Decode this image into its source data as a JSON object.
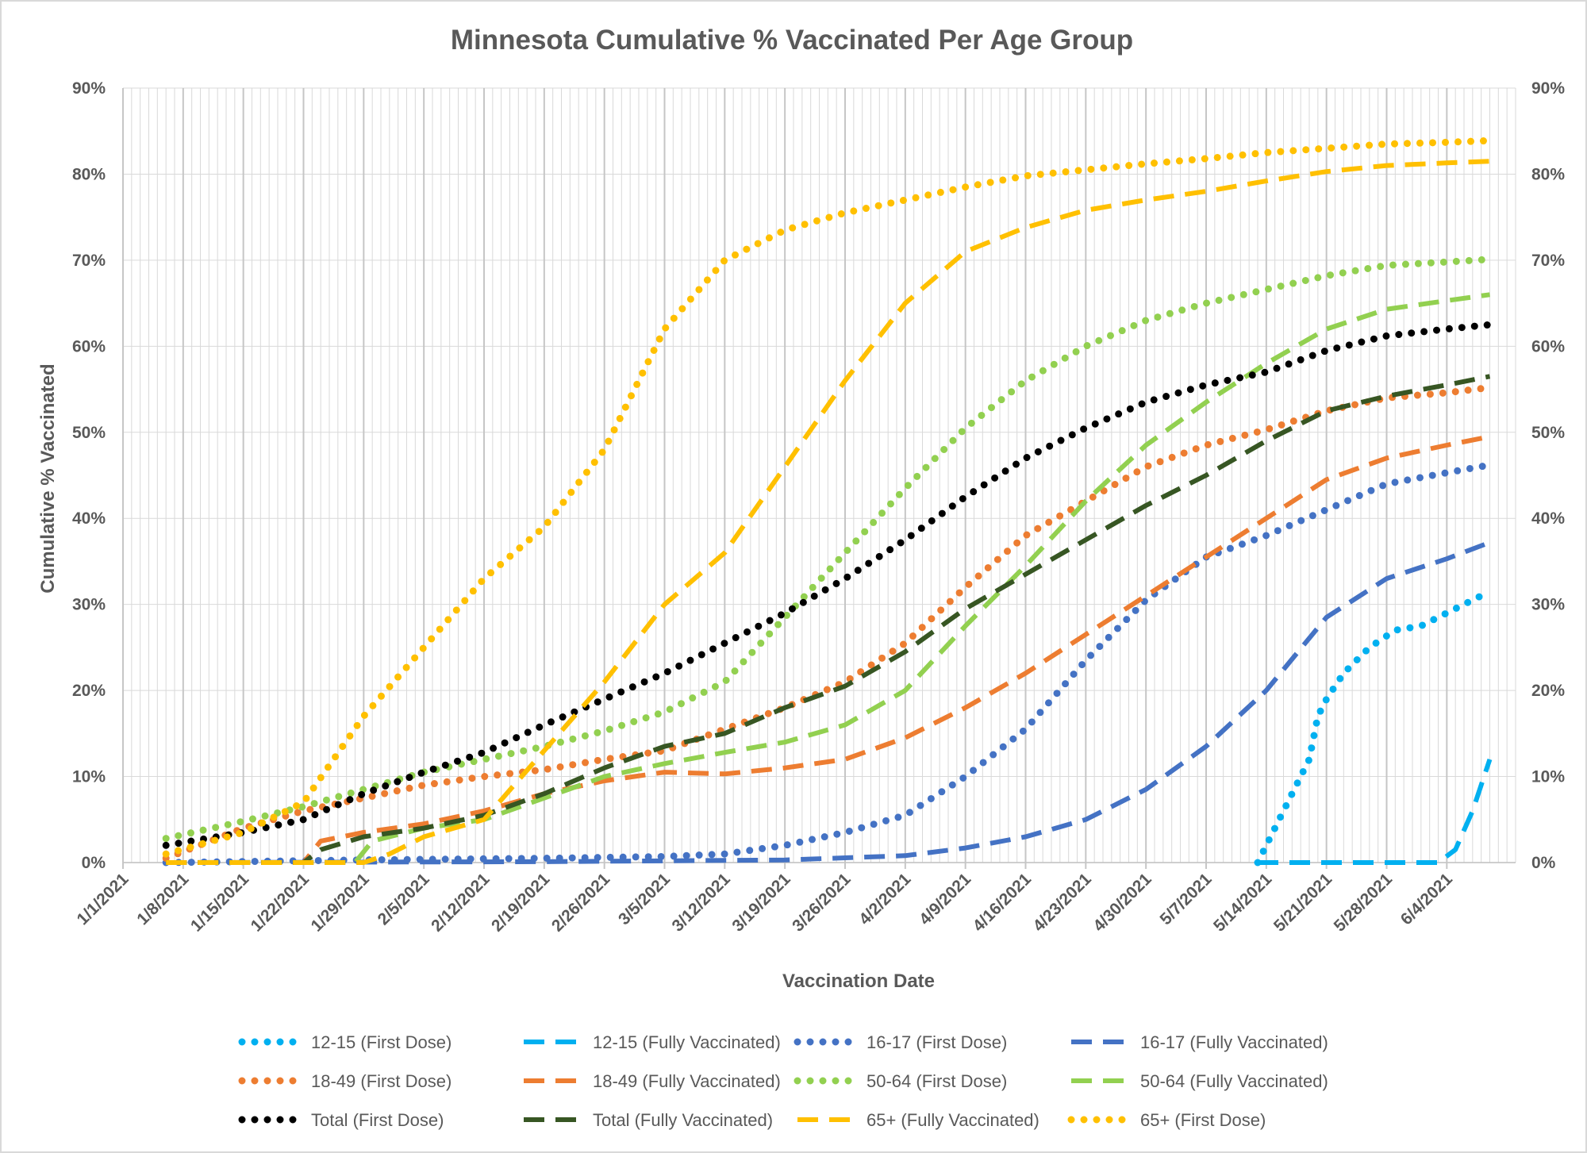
{
  "chart_data": {
    "type": "line",
    "title": "Minnesota Cumulative % Vaccinated Per Age Group",
    "xlabel": "Vaccination Date",
    "ylabel": "Cumulative % Vaccinated",
    "ylim": [
      0,
      90
    ],
    "yticks": [
      "0%",
      "10%",
      "20%",
      "30%",
      "40%",
      "50%",
      "60%",
      "70%",
      "80%",
      "90%"
    ],
    "y_right_ticks": [
      "0%",
      "10%",
      "20%",
      "30%",
      "40%",
      "50%",
      "60%",
      "70%",
      "80%",
      "90%"
    ],
    "x_range": [
      "2021-01-01",
      "2021-06-12"
    ],
    "xtick_dates": [
      "2021-01-01",
      "2021-01-08",
      "2021-01-15",
      "2021-01-22",
      "2021-01-29",
      "2021-02-05",
      "2021-02-12",
      "2021-02-19",
      "2021-02-26",
      "2021-03-05",
      "2021-03-12",
      "2021-03-19",
      "2021-03-26",
      "2021-04-02",
      "2021-04-09",
      "2021-04-16",
      "2021-04-23",
      "2021-04-30",
      "2021-05-07",
      "2021-05-14",
      "2021-05-21",
      "2021-05-28",
      "2021-06-04"
    ],
    "xtick_labels": [
      "1/1/2021",
      "1/8/2021",
      "1/15/2021",
      "1/22/2021",
      "1/29/2021",
      "2/5/2021",
      "2/12/2021",
      "2/19/2021",
      "2/26/2021",
      "3/5/2021",
      "3/12/2021",
      "3/19/2021",
      "3/26/2021",
      "4/2/2021",
      "4/9/2021",
      "4/16/2021",
      "4/23/2021",
      "4/30/2021",
      "5/7/2021",
      "5/14/2021",
      "5/21/2021",
      "5/28/2021",
      "6/4/2021"
    ],
    "grid": true,
    "legend_position": "bottom",
    "series": [
      {
        "name": "12-15 (First Dose)",
        "color": "#00b0f0",
        "style": "dotted",
        "x": [
          "2021-05-13",
          "2021-05-15",
          "2021-05-17",
          "2021-05-19",
          "2021-05-20",
          "2021-05-21",
          "2021-05-23",
          "2021-05-26",
          "2021-05-29",
          "2021-06-01",
          "2021-06-04",
          "2021-06-07",
          "2021-06-09"
        ],
        "y": [
          0,
          4,
          8,
          12,
          17,
          19,
          22,
          25,
          27,
          27.5,
          29,
          30.5,
          31.5
        ]
      },
      {
        "name": "12-15 (Fully Vaccinated)",
        "color": "#00b0f0",
        "style": "dashed",
        "x": [
          "2021-05-13",
          "2021-05-20",
          "2021-05-27",
          "2021-06-03",
          "2021-06-05",
          "2021-06-07",
          "2021-06-09"
        ],
        "y": [
          0,
          0,
          0,
          0,
          1.5,
          6,
          12
        ]
      },
      {
        "name": "16-17 (First Dose)",
        "color": "#4472c4",
        "style": "dotted",
        "x": [
          "2021-01-06",
          "2021-01-29",
          "2021-02-19",
          "2021-03-05",
          "2021-03-12",
          "2021-03-19",
          "2021-03-26",
          "2021-04-02",
          "2021-04-09",
          "2021-04-16",
          "2021-04-23",
          "2021-04-30",
          "2021-05-07",
          "2021-05-14",
          "2021-05-21",
          "2021-05-28",
          "2021-06-04",
          "2021-06-09"
        ],
        "y": [
          0,
          0.3,
          0.5,
          0.7,
          1,
          2,
          3.5,
          5.5,
          10,
          15.5,
          23.5,
          30.5,
          35.5,
          38,
          41,
          44,
          45.3,
          46.2
        ]
      },
      {
        "name": "16-17 (Fully Vaccinated)",
        "color": "#4472c4",
        "style": "dashed",
        "x": [
          "2021-01-06",
          "2021-02-19",
          "2021-03-19",
          "2021-04-02",
          "2021-04-09",
          "2021-04-16",
          "2021-04-23",
          "2021-04-30",
          "2021-05-07",
          "2021-05-14",
          "2021-05-21",
          "2021-05-28",
          "2021-06-04",
          "2021-06-09"
        ],
        "y": [
          0,
          0.1,
          0.3,
          0.8,
          1.7,
          3,
          5,
          8.5,
          13.5,
          20,
          28.5,
          33,
          35.3,
          37.2
        ]
      },
      {
        "name": "18-49 (First Dose)",
        "color": "#ed7d31",
        "style": "dotted",
        "x": [
          "2021-01-06",
          "2021-01-15",
          "2021-01-22",
          "2021-01-29",
          "2021-02-05",
          "2021-02-12",
          "2021-02-19",
          "2021-02-26",
          "2021-03-05",
          "2021-03-12",
          "2021-03-19",
          "2021-03-26",
          "2021-04-02",
          "2021-04-09",
          "2021-04-16",
          "2021-04-23",
          "2021-04-30",
          "2021-05-07",
          "2021-05-14",
          "2021-05-21",
          "2021-05-28",
          "2021-06-04",
          "2021-06-09"
        ],
        "y": [
          0.5,
          4,
          6,
          7.5,
          9,
          10,
          10.8,
          12,
          13,
          15.5,
          18,
          21,
          25.5,
          32,
          38,
          42,
          46,
          48.5,
          50.3,
          52.5,
          54,
          54.6,
          55.2
        ]
      },
      {
        "name": "18-49 (Fully Vaccinated)",
        "color": "#ed7d31",
        "style": "dashed",
        "x": [
          "2021-01-06",
          "2021-01-22",
          "2021-01-24",
          "2021-01-29",
          "2021-02-05",
          "2021-02-12",
          "2021-02-19",
          "2021-02-26",
          "2021-03-05",
          "2021-03-12",
          "2021-03-19",
          "2021-03-26",
          "2021-04-02",
          "2021-04-09",
          "2021-04-16",
          "2021-04-23",
          "2021-04-30",
          "2021-05-07",
          "2021-05-14",
          "2021-05-21",
          "2021-05-28",
          "2021-06-04",
          "2021-06-09"
        ],
        "y": [
          0,
          0,
          2.5,
          3.5,
          4.5,
          6,
          8,
          9.5,
          10.5,
          10.3,
          11,
          12,
          14.5,
          18,
          22,
          26.5,
          31,
          35.5,
          40,
          44.5,
          47,
          48.5,
          49.5
        ]
      },
      {
        "name": "50-64 (First Dose)",
        "color": "#92d050",
        "style": "dotted",
        "x": [
          "2021-01-06",
          "2021-01-15",
          "2021-01-22",
          "2021-01-29",
          "2021-02-05",
          "2021-02-12",
          "2021-02-19",
          "2021-02-26",
          "2021-03-05",
          "2021-03-12",
          "2021-03-19",
          "2021-03-26",
          "2021-04-02",
          "2021-04-09",
          "2021-04-16",
          "2021-04-23",
          "2021-04-30",
          "2021-05-07",
          "2021-05-14",
          "2021-05-21",
          "2021-05-28",
          "2021-06-04",
          "2021-06-09"
        ],
        "y": [
          2.8,
          4.8,
          6.5,
          8.5,
          10.5,
          12,
          13.5,
          15.3,
          17.5,
          21,
          28.5,
          36,
          43.5,
          50.5,
          56,
          60,
          63,
          65,
          66.6,
          68.2,
          69.4,
          69.8,
          70.1
        ]
      },
      {
        "name": "50-64 (Fully Vaccinated)",
        "color": "#92d050",
        "style": "dashed",
        "x": [
          "2021-01-06",
          "2021-01-28",
          "2021-01-30",
          "2021-02-05",
          "2021-02-12",
          "2021-02-19",
          "2021-02-26",
          "2021-03-05",
          "2021-03-12",
          "2021-03-19",
          "2021-03-26",
          "2021-04-02",
          "2021-04-09",
          "2021-04-16",
          "2021-04-23",
          "2021-04-30",
          "2021-05-07",
          "2021-05-14",
          "2021-05-21",
          "2021-05-28",
          "2021-06-04",
          "2021-06-09"
        ],
        "y": [
          0,
          0,
          2.5,
          4,
          5,
          7.5,
          10,
          11.5,
          12.8,
          14,
          16,
          20,
          27.5,
          34.5,
          42,
          48.5,
          53.5,
          58,
          62,
          64.3,
          65.3,
          66
        ]
      },
      {
        "name": "Total (First Dose)",
        "color": "#000000",
        "style": "dotted",
        "x": [
          "2021-01-06",
          "2021-01-15",
          "2021-01-22",
          "2021-01-29",
          "2021-02-05",
          "2021-02-12",
          "2021-02-19",
          "2021-02-26",
          "2021-03-05",
          "2021-03-12",
          "2021-03-19",
          "2021-03-26",
          "2021-04-02",
          "2021-04-09",
          "2021-04-16",
          "2021-04-23",
          "2021-04-30",
          "2021-05-07",
          "2021-05-14",
          "2021-05-21",
          "2021-05-28",
          "2021-06-04",
          "2021-06-09"
        ],
        "y": [
          2,
          3.5,
          5,
          8,
          10.5,
          12.8,
          16,
          19,
          22,
          25.5,
          29,
          33,
          37.5,
          42.5,
          47,
          50.5,
          53.5,
          55.5,
          57,
          59.5,
          61.2,
          62,
          62.5
        ]
      },
      {
        "name": "Total (Fully Vaccinated)",
        "color": "#375623",
        "style": "dashed",
        "x": [
          "2021-01-06",
          "2021-01-22",
          "2021-01-24",
          "2021-01-29",
          "2021-02-05",
          "2021-02-12",
          "2021-02-19",
          "2021-02-26",
          "2021-03-05",
          "2021-03-12",
          "2021-03-19",
          "2021-03-26",
          "2021-04-02",
          "2021-04-09",
          "2021-04-16",
          "2021-04-23",
          "2021-04-30",
          "2021-05-07",
          "2021-05-14",
          "2021-05-21",
          "2021-05-28",
          "2021-06-04",
          "2021-06-09"
        ],
        "y": [
          0,
          0,
          1.5,
          3,
          4,
          5.5,
          8,
          11,
          13.5,
          15,
          18,
          20.5,
          24.5,
          29.5,
          33.5,
          37.5,
          41.5,
          45,
          49,
          52.5,
          54.2,
          55.5,
          56.5
        ]
      },
      {
        "name": "65+ (Fully Vaccinated)",
        "color": "#ffc000",
        "style": "dashed",
        "x": [
          "2021-01-06",
          "2021-01-29",
          "2021-02-01",
          "2021-02-05",
          "2021-02-12",
          "2021-02-19",
          "2021-02-26",
          "2021-03-05",
          "2021-03-12",
          "2021-03-19",
          "2021-03-26",
          "2021-04-02",
          "2021-04-09",
          "2021-04-16",
          "2021-04-23",
          "2021-04-30",
          "2021-05-07",
          "2021-05-14",
          "2021-05-21",
          "2021-05-28",
          "2021-06-04",
          "2021-06-09"
        ],
        "y": [
          0,
          0,
          1,
          3,
          5,
          13,
          21,
          30,
          36,
          46,
          56,
          65,
          71,
          73.8,
          75.8,
          77,
          78,
          79.2,
          80.3,
          81,
          81.3,
          81.5
        ]
      },
      {
        "name": "65+ (First Dose)",
        "color": "#ffc000",
        "style": "dotted",
        "x": [
          "2021-01-06",
          "2021-01-15",
          "2021-01-22",
          "2021-01-29",
          "2021-02-05",
          "2021-02-12",
          "2021-02-19",
          "2021-02-26",
          "2021-03-05",
          "2021-03-12",
          "2021-03-19",
          "2021-03-26",
          "2021-04-02",
          "2021-04-09",
          "2021-04-16",
          "2021-04-23",
          "2021-04-30",
          "2021-05-07",
          "2021-05-14",
          "2021-05-21",
          "2021-05-28",
          "2021-06-04",
          "2021-06-09"
        ],
        "y": [
          1,
          3.5,
          7,
          17,
          25,
          33,
          39,
          48,
          62,
          70,
          73.5,
          75.5,
          77,
          78.5,
          79.8,
          80.5,
          81.2,
          81.8,
          82.5,
          83,
          83.5,
          83.7,
          83.9
        ]
      }
    ]
  }
}
